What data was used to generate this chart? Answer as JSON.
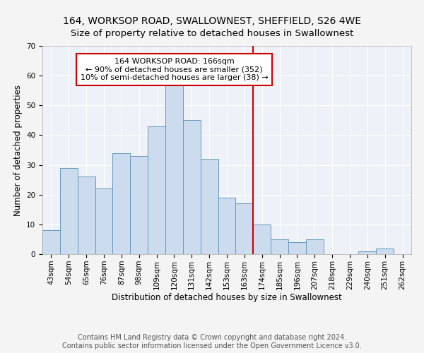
{
  "title_line1": "164, WORKSOP ROAD, SWALLOWNEST, SHEFFIELD, S26 4WE",
  "title_line2": "Size of property relative to detached houses in Swallownest",
  "xlabel": "Distribution of detached houses by size in Swallownest",
  "ylabel": "Number of detached properties",
  "categories": [
    "43sqm",
    "54sqm",
    "65sqm",
    "76sqm",
    "87sqm",
    "98sqm",
    "109sqm",
    "120sqm",
    "131sqm",
    "142sqm",
    "153sqm",
    "163sqm",
    "174sqm",
    "185sqm",
    "196sqm",
    "207sqm",
    "218sqm",
    "229sqm",
    "240sqm",
    "251sqm",
    "262sqm"
  ],
  "values": [
    8,
    29,
    26,
    22,
    34,
    33,
    43,
    57,
    45,
    32,
    19,
    17,
    10,
    5,
    4,
    5,
    0,
    0,
    1,
    2,
    0
  ],
  "bar_color": "#ccdcee",
  "bar_edge_color": "#6699bb",
  "vline_x": 11.5,
  "vline_color": "#cc0000",
  "ylim": [
    0,
    70
  ],
  "yticks": [
    0,
    10,
    20,
    30,
    40,
    50,
    60,
    70
  ],
  "annotation_title": "164 WORKSOP ROAD: 166sqm",
  "annotation_line1": "← 90% of detached houses are smaller (352)",
  "annotation_line2": "10% of semi-detached houses are larger (38) →",
  "annotation_box_color": "#cc0000",
  "footer_line1": "Contains HM Land Registry data © Crown copyright and database right 2024.",
  "footer_line2": "Contains public sector information licensed under the Open Government Licence v3.0.",
  "background_color": "#eef2f8",
  "grid_color": "#ffffff",
  "fig_background": "#f4f4f4",
  "title_fontsize": 10,
  "subtitle_fontsize": 9.5,
  "axis_label_fontsize": 8.5,
  "tick_fontsize": 7.5,
  "annotation_fontsize": 8,
  "footer_fontsize": 7
}
